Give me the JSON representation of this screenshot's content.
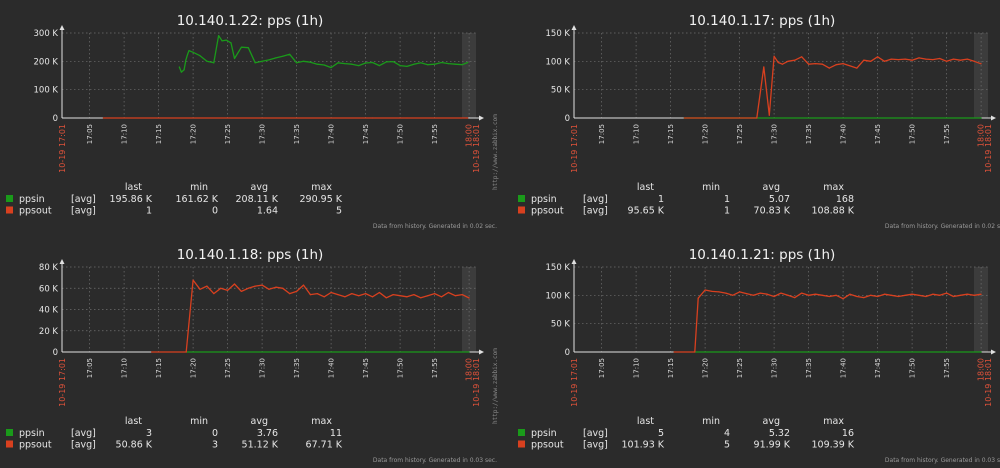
{
  "colors": {
    "background": "#2b2b2b",
    "grid": "#6f6f6f",
    "axis": "#e0e0e0",
    "ppsin": "#1a9a1a",
    "ppsout": "#d8401f",
    "red_text": "#e0523a",
    "shade": "#3c3c3c"
  },
  "legend_columns": [
    "last",
    "min",
    "avg",
    "max"
  ],
  "footer_note": "Data from history.",
  "watermark": "http://www.zabbix.com",
  "chart_data": [
    {
      "type": "line",
      "title": "10.140.1.22: pps (1h)",
      "x_tick_labels": [
        "17:05",
        "17:10",
        "17:15",
        "17:20",
        "17:25",
        "17:30",
        "17:35",
        "17:40",
        "17:45",
        "17:50",
        "17:55",
        "18:00"
      ],
      "x_start_label": "10-19 17:01",
      "x_end_label": "10-19 18:01",
      "x_range": [
        "17:01",
        "18:01"
      ],
      "y_ticks": [
        "0",
        "100 K",
        "200 K",
        "300 K"
      ],
      "ylim": [
        0,
        300000
      ],
      "generated_note": "Generated in 0.02 sec.",
      "series": [
        {
          "name": "ppsin",
          "color": "#1a9a1a",
          "x": [
            17.0,
            17.3,
            17.7,
            17.95,
            18.2,
            18.4,
            19.0,
            20.0,
            21.0,
            22.0,
            22.7,
            23.2,
            23.8,
            24.5,
            25.0,
            26.0,
            27.0,
            28.0,
            29.0,
            30.0,
            31.0,
            32.0,
            33.0,
            34.0,
            35.0,
            36.0,
            37.0,
            38.0,
            39.0,
            40.0,
            41.0,
            42.0,
            43.0,
            44.0,
            45.0,
            46.0,
            47.0,
            48.0,
            49.0,
            50.0,
            51.0,
            52.0,
            53.0,
            54.0,
            55.0,
            56.0,
            57.0,
            58.0,
            58.8
          ],
          "y": [
            180000,
            162000,
            170000,
            205000,
            225000,
            238000,
            232000,
            220000,
            200000,
            195000,
            290950,
            272000,
            275000,
            265000,
            210000,
            250000,
            248000,
            195000,
            200000,
            205000,
            212000,
            218000,
            225000,
            195000,
            200000,
            197000,
            190000,
            187000,
            178000,
            195000,
            192000,
            190000,
            185000,
            194000,
            196000,
            185000,
            198000,
            199000,
            185000,
            182000,
            190000,
            195000,
            188000,
            190000,
            196000,
            192000,
            190000,
            188000,
            195860
          ]
        },
        {
          "name": "ppsout",
          "color": "#d8401f",
          "x": [
            6.0,
            45.0,
            50.0,
            58.8
          ],
          "y": [
            1,
            1,
            1,
            1
          ]
        }
      ],
      "legend": [
        {
          "name": "ppsin",
          "agg": "[avg]",
          "last": "195.86 K",
          "min": "161.62 K",
          "avg": "208.11 K",
          "max": "290.95 K"
        },
        {
          "name": "ppsout",
          "agg": "[avg]",
          "last": "1",
          "min": "0",
          "avg": "1.64",
          "max": "5"
        }
      ]
    },
    {
      "type": "line",
      "title": "10.140.1.17: pps (1h)",
      "x_tick_labels": [
        "17:05",
        "17:10",
        "17:15",
        "17:20",
        "17:25",
        "17:30",
        "17:35",
        "17:40",
        "17:45",
        "17:50",
        "17:55",
        "18:00"
      ],
      "x_start_label": "10-19 17:01",
      "x_end_label": "10-19 18:01",
      "x_range": [
        "17:01",
        "18:01"
      ],
      "y_ticks": [
        "0",
        "50 K",
        "100 K",
        "150 K"
      ],
      "ylim": [
        0,
        150000
      ],
      "generated_note": "Generated in 0.02 sec.",
      "series": [
        {
          "name": "ppsin",
          "color": "#1a9a1a",
          "x": [
            16.0,
            59.0
          ],
          "y": [
            1,
            1
          ]
        },
        {
          "name": "ppsout",
          "color": "#d8401f",
          "x": [
            16.0,
            26.5,
            27.5,
            28.3,
            29.0,
            29.6,
            30.2,
            31.0,
            32.0,
            33.0,
            34.0,
            35.0,
            36.0,
            37.0,
            38.0,
            39.0,
            40.0,
            41.0,
            42.0,
            43.0,
            44.0,
            45.0,
            46.0,
            47.0,
            48.0,
            49.0,
            50.0,
            51.0,
            52.0,
            53.0,
            54.0,
            55.0,
            56.0,
            57.0,
            58.0,
            59.0
          ],
          "y": [
            1,
            1,
            90000,
            5000,
            108880,
            98000,
            95000,
            100000,
            102000,
            108000,
            95000,
            96000,
            95000,
            88000,
            94000,
            96000,
            92000,
            88000,
            102000,
            100000,
            108000,
            100000,
            104000,
            103000,
            104000,
            102000,
            106000,
            104000,
            103000,
            105000,
            100000,
            104000,
            102000,
            104000,
            100000,
            95650
          ]
        }
      ],
      "legend": [
        {
          "name": "ppsin",
          "agg": "[avg]",
          "last": "1",
          "min": "1",
          "avg": "5.07",
          "max": "168"
        },
        {
          "name": "ppsout",
          "agg": "[avg]",
          "last": "95.65 K",
          "min": "1",
          "avg": "70.83 K",
          "max": "108.88 K"
        }
      ]
    },
    {
      "type": "line",
      "title": "10.140.1.18: pps (1h)",
      "x_tick_labels": [
        "17:05",
        "17:10",
        "17:15",
        "17:20",
        "17:25",
        "17:30",
        "17:35",
        "17:40",
        "17:45",
        "17:50",
        "17:55",
        "18:00"
      ],
      "x_start_label": "10-19 17:01",
      "x_end_label": "10-19 18:01",
      "x_range": [
        "17:01",
        "18:01"
      ],
      "y_ticks": [
        "0",
        "20 K",
        "40 K",
        "60 K",
        "80 K"
      ],
      "ylim": [
        0,
        80000
      ],
      "generated_note": "Generated in 0.03 sec.",
      "series": [
        {
          "name": "ppsin",
          "color": "#1a9a1a",
          "x": [
            18.0,
            59.0
          ],
          "y": [
            3,
            3
          ]
        },
        {
          "name": "ppsout",
          "color": "#d8401f",
          "x": [
            13.0,
            18.0,
            19.0,
            20.0,
            21.0,
            22.0,
            23.0,
            24.0,
            25.0,
            26.0,
            27.0,
            28.0,
            29.0,
            30.0,
            31.0,
            32.0,
            33.0,
            34.0,
            35.0,
            36.0,
            37.0,
            38.0,
            39.0,
            40.0,
            41.0,
            42.0,
            43.0,
            44.0,
            45.0,
            46.0,
            47.0,
            48.0,
            49.0,
            50.0,
            51.0,
            52.0,
            53.0,
            54.0,
            55.0,
            56.0,
            57.0,
            58.0,
            59.0
          ],
          "y": [
            3,
            3,
            67710,
            59000,
            62000,
            55000,
            60000,
            58000,
            64000,
            57000,
            60000,
            62000,
            63000,
            59000,
            61000,
            60000,
            55000,
            57000,
            63000,
            54000,
            55000,
            52000,
            56000,
            54000,
            52000,
            55000,
            53000,
            55000,
            52000,
            56000,
            51000,
            54000,
            53000,
            52000,
            54000,
            51000,
            53000,
            55000,
            52000,
            56000,
            53000,
            54000,
            50860
          ]
        }
      ],
      "legend": [
        {
          "name": "ppsin",
          "agg": "[avg]",
          "last": "3",
          "min": "0",
          "avg": "3.76",
          "max": "11"
        },
        {
          "name": "ppsout",
          "agg": "[avg]",
          "last": "50.86 K",
          "min": "3",
          "avg": "51.12 K",
          "max": "67.71 K"
        }
      ]
    },
    {
      "type": "line",
      "title": "10.140.1.21: pps (1h)",
      "x_tick_labels": [
        "17:05",
        "17:10",
        "17:15",
        "17:20",
        "17:25",
        "17:30",
        "17:35",
        "17:40",
        "17:45",
        "17:50",
        "17:55",
        "18:00"
      ],
      "x_start_label": "10-19 17:01",
      "x_end_label": "10-19 18:01",
      "x_range": [
        "17:01",
        "18:01"
      ],
      "y_ticks": [
        "0",
        "50 K",
        "100 K",
        "150 K"
      ],
      "ylim": [
        0,
        150000
      ],
      "generated_note": "Generated in 0.03 sec.",
      "series": [
        {
          "name": "ppsin",
          "color": "#1a9a1a",
          "x": [
            17.5,
            59.0
          ],
          "y": [
            5,
            5
          ]
        },
        {
          "name": "ppsout",
          "color": "#d8401f",
          "x": [
            14.5,
            17.5,
            18.0,
            19.0,
            20.0,
            21.0,
            22.0,
            23.0,
            24.0,
            25.0,
            26.0,
            27.0,
            28.0,
            29.0,
            30.0,
            31.0,
            32.0,
            33.0,
            34.0,
            35.0,
            36.0,
            37.0,
            38.0,
            39.0,
            40.0,
            41.0,
            42.0,
            43.0,
            44.0,
            45.0,
            46.0,
            47.0,
            48.0,
            49.0,
            50.0,
            51.0,
            52.0,
            53.0,
            54.0,
            55.0,
            56.0,
            57.0,
            58.0,
            59.0
          ],
          "y": [
            5,
            5,
            95000,
            109390,
            107000,
            106000,
            104000,
            100000,
            106000,
            103000,
            100000,
            104000,
            102000,
            98000,
            104000,
            100000,
            96000,
            104000,
            100000,
            102000,
            100000,
            98000,
            100000,
            94000,
            102000,
            98000,
            96000,
            100000,
            98000,
            102000,
            100000,
            98000,
            100000,
            102000,
            100000,
            98000,
            102000,
            100000,
            104000,
            98000,
            100000,
            102000,
            100000,
            101930
          ]
        }
      ],
      "legend": [
        {
          "name": "ppsin",
          "agg": "[avg]",
          "last": "5",
          "min": "4",
          "avg": "5.32",
          "max": "16"
        },
        {
          "name": "ppsout",
          "agg": "[avg]",
          "last": "101.93 K",
          "min": "5",
          "avg": "91.99 K",
          "max": "109.39 K"
        }
      ]
    }
  ]
}
